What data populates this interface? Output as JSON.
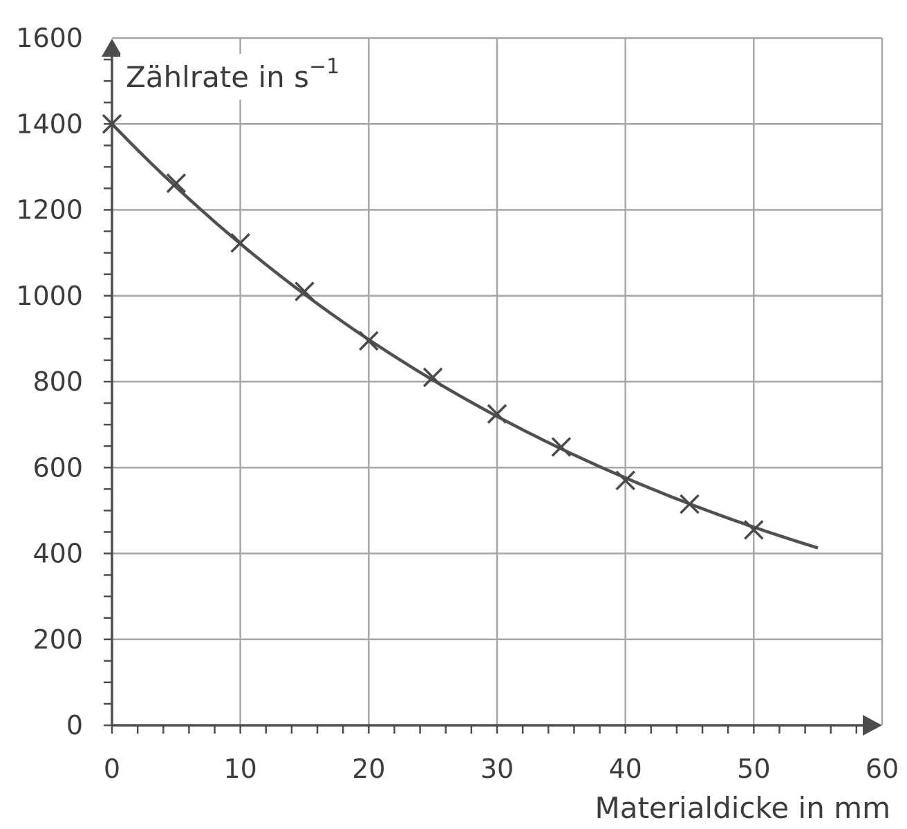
{
  "chart_data": {
    "type": "scatter",
    "title": "",
    "xlabel": "Materialdicke in mm",
    "ylabel": "Zählrate in s",
    "ylabel_superscript": "−1",
    "xlim": [
      0,
      60
    ],
    "ylim": [
      0,
      1600
    ],
    "x_ticks": [
      "0",
      "10",
      "20",
      "30",
      "40",
      "50",
      "60"
    ],
    "y_ticks": [
      "0",
      "200",
      "400",
      "600",
      "800",
      "1000",
      "1200",
      "1400",
      "1600"
    ],
    "grid": true,
    "series": [
      {
        "marker": "x",
        "x": [
          0,
          5,
          10,
          15,
          20,
          25,
          30,
          35,
          40,
          45,
          50
        ],
        "y": [
          1400,
          1262,
          1123,
          1010,
          895,
          810,
          725,
          648,
          570,
          515,
          455
        ]
      }
    ],
    "fit_curve": {
      "formula": "exponential",
      "a": 1400,
      "k": 0.0222,
      "x_range": [
        0,
        55
      ]
    }
  }
}
